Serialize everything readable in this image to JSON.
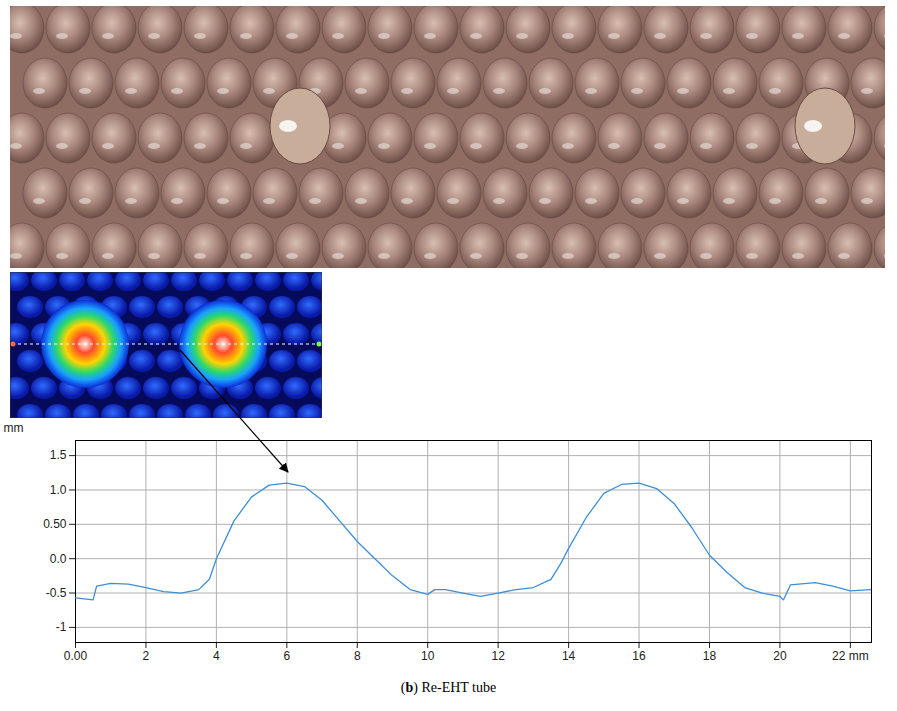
{
  "chart_data": {
    "type": "line",
    "caption": "(b) Re-EHT tube",
    "ylabel": "mm",
    "x": [
      0,
      0.5,
      0.6,
      1,
      1.5,
      2,
      2.5,
      3,
      3.5,
      3.8,
      4,
      4.5,
      5,
      5.5,
      6,
      6.5,
      7,
      7.5,
      8,
      8.5,
      9,
      9.5,
      10,
      10.2,
      10.5,
      11,
      11.5,
      12,
      12.5,
      13,
      13.5,
      13.8,
      14,
      14.5,
      15,
      15.5,
      16,
      16.5,
      17,
      17.5,
      18,
      18.5,
      19,
      19.5,
      20,
      20.1,
      20.3,
      21,
      21.5,
      22,
      22.6
    ],
    "values": [
      -0.57,
      -0.6,
      -0.4,
      -0.36,
      -0.37,
      -0.42,
      -0.48,
      -0.5,
      -0.45,
      -0.3,
      0.0,
      0.55,
      0.9,
      1.07,
      1.1,
      1.05,
      0.85,
      0.55,
      0.25,
      0.0,
      -0.25,
      -0.45,
      -0.52,
      -0.45,
      -0.45,
      -0.5,
      -0.55,
      -0.5,
      -0.45,
      -0.42,
      -0.3,
      -0.05,
      0.15,
      0.6,
      0.95,
      1.08,
      1.1,
      1.02,
      0.8,
      0.45,
      0.05,
      -0.2,
      -0.42,
      -0.5,
      -0.55,
      -0.6,
      -0.38,
      -0.35,
      -0.4,
      -0.47,
      -0.45
    ],
    "color": "#3b8fd9",
    "xlim": [
      0,
      22.6
    ],
    "ylim": [
      -1.22,
      1.72
    ],
    "xticks": [
      {
        "value": 0,
        "label": "0.00"
      },
      2,
      4,
      6,
      8,
      10,
      12,
      14,
      16,
      18,
      20,
      {
        "value": 22,
        "label": "22 mm"
      }
    ],
    "yticks": [
      -1,
      -0.5,
      {
        "value": 0,
        "label": "0.0"
      },
      {
        "value": 0.5,
        "label": "0.50"
      },
      {
        "value": 1,
        "label": "1.0"
      },
      1.5
    ],
    "grid": true
  }
}
